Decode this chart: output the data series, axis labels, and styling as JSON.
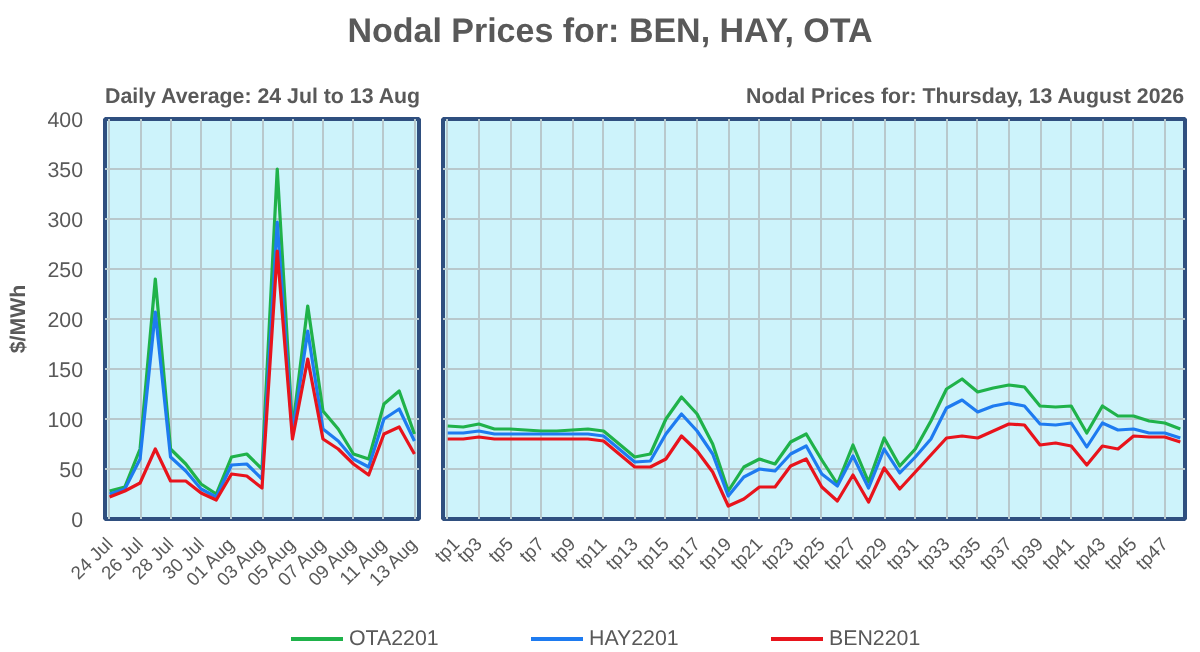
{
  "chart_data": [
    {
      "type": "line",
      "title": "Nodal Prices for: BEN, HAY, OTA",
      "subtitle": "Daily Average: 24 Jul to 13 Aug",
      "ylabel": "$/MWh",
      "categories": [
        "24 Jul",
        null,
        "26 Jul",
        null,
        "28 Jul",
        null,
        "30 Jul",
        null,
        "01 Aug",
        null,
        "03 Aug",
        null,
        "05 Aug",
        null,
        "07 Aug",
        null,
        "09 Aug",
        null,
        "11 Aug",
        null,
        "13 Aug"
      ],
      "series": [
        {
          "name": "OTA2201",
          "color": "#1fb24a",
          "values": [
            28,
            32,
            70,
            240,
            70,
            55,
            35,
            25,
            62,
            65,
            50,
            350,
            90,
            213,
            108,
            90,
            65,
            60,
            115,
            128,
            85
          ]
        },
        {
          "name": "HAY2201",
          "color": "#1e7bf0",
          "values": [
            25,
            30,
            60,
            207,
            62,
            48,
            30,
            22,
            54,
            55,
            40,
            297,
            85,
            188,
            90,
            78,
            60,
            52,
            100,
            110,
            78
          ]
        },
        {
          "name": "BEN2201",
          "color": "#e8141c",
          "values": [
            22,
            28,
            36,
            70,
            38,
            38,
            26,
            19,
            45,
            43,
            31,
            268,
            80,
            160,
            80,
            70,
            55,
            44,
            85,
            92,
            65
          ]
        }
      ],
      "ylim": [
        0,
        400
      ],
      "yticks": [
        0,
        50,
        100,
        150,
        200,
        250,
        300,
        350,
        400
      ],
      "grid": true,
      "legend": "bottom",
      "marker": "none",
      "line_style": "solid"
    },
    {
      "type": "line",
      "subtitle": "Nodal Prices for: Thursday, 13 August 2026",
      "categories": [
        "tp1",
        null,
        "tp3",
        null,
        "tp5",
        null,
        "tp7",
        null,
        "tp9",
        null,
        "tp11",
        null,
        "tp13",
        null,
        "tp15",
        null,
        "tp17",
        null,
        "tp19",
        null,
        "tp21",
        null,
        "tp23",
        null,
        "tp25",
        null,
        "tp27",
        null,
        "tp29",
        null,
        "tp31",
        null,
        "tp33",
        null,
        "tp35",
        null,
        "tp37",
        null,
        "tp39",
        null,
        "tp41",
        null,
        "tp43",
        null,
        "tp45",
        null,
        "tp47",
        null
      ],
      "series": [
        {
          "name": "OTA2201",
          "color": "#1fb24a",
          "values": [
            93,
            92,
            95,
            90,
            90,
            89,
            88,
            88,
            89,
            90,
            88,
            75,
            62,
            65,
            100,
            122,
            105,
            75,
            28,
            52,
            60,
            55,
            77,
            85,
            59,
            35,
            74,
            37,
            81,
            53,
            70,
            98,
            130,
            140,
            127,
            131,
            134,
            132,
            113,
            112,
            113,
            86,
            113,
            103,
            103,
            98,
            96,
            90
          ]
        },
        {
          "name": "HAY2201",
          "color": "#1e7bf0",
          "values": [
            86,
            86,
            88,
            85,
            85,
            85,
            85,
            85,
            85,
            85,
            83,
            70,
            57,
            58,
            85,
            105,
            88,
            65,
            23,
            42,
            50,
            48,
            65,
            73,
            45,
            33,
            63,
            31,
            70,
            46,
            62,
            80,
            111,
            119,
            107,
            113,
            116,
            113,
            95,
            94,
            96,
            72,
            96,
            89,
            90,
            86,
            86,
            81
          ]
        },
        {
          "name": "BEN2201",
          "color": "#e8141c",
          "values": [
            80,
            80,
            82,
            80,
            80,
            80,
            80,
            80,
            80,
            80,
            78,
            65,
            52,
            52,
            60,
            83,
            68,
            47,
            13,
            20,
            32,
            32,
            53,
            60,
            32,
            18,
            44,
            17,
            51,
            30,
            47,
            64,
            81,
            83,
            81,
            88,
            95,
            94,
            74,
            76,
            73,
            54,
            73,
            70,
            83,
            82,
            82,
            77
          ]
        }
      ],
      "ylim": [
        0,
        400
      ],
      "yticks": [
        0,
        50,
        100,
        150,
        200,
        250,
        300,
        350,
        400
      ],
      "tick_labels": "x",
      "grid": true,
      "legend": "bottom",
      "marker": "none",
      "line_style": "solid"
    }
  ]
}
